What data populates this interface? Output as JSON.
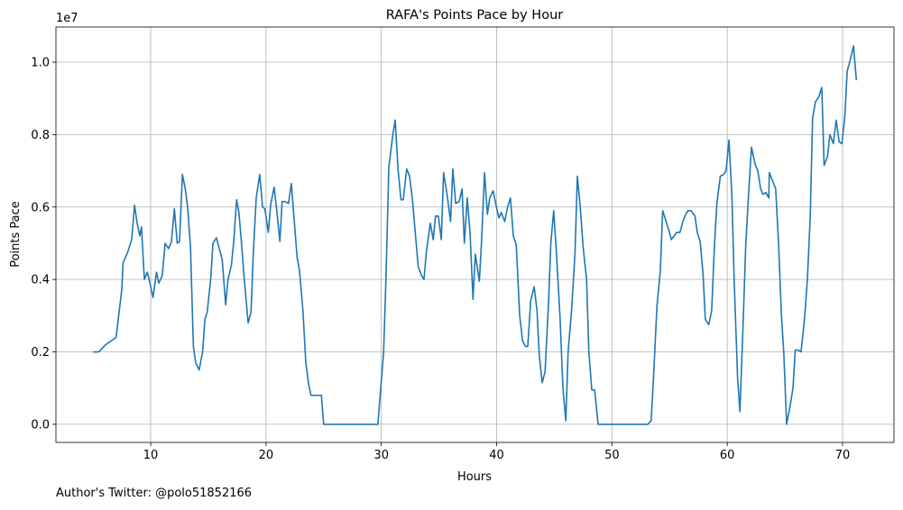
{
  "chart_data": {
    "type": "line",
    "title": "RAFA's Points Pace by Hour",
    "x_label": "Hours",
    "y_label": "Points Pace",
    "y_offset_label": "1e7",
    "footnote": "Author's Twitter: @polo51852166",
    "color": "#1f77b4",
    "grid": true,
    "xlim": [
      1.78,
      74.46
    ],
    "xticks": [
      10,
      20,
      30,
      40,
      50,
      60,
      70
    ],
    "ylim": [
      -500000,
      10970000
    ],
    "yticks": [
      {
        "value": 0,
        "label": "0.0"
      },
      {
        "value": 2000000,
        "label": "0.2"
      },
      {
        "value": 4000000,
        "label": "0.4"
      },
      {
        "value": 6000000,
        "label": "0.6"
      },
      {
        "value": 8000000,
        "label": "0.8"
      },
      {
        "value": 10000000,
        "label": "1.0"
      }
    ],
    "x": [
      5.0,
      5.5,
      6.1,
      7.0,
      7.5,
      7.6,
      8.0,
      8.35,
      8.6,
      8.8,
      9.05,
      9.2,
      9.45,
      9.7,
      9.9,
      10.2,
      10.5,
      10.7,
      11.0,
      11.25,
      11.55,
      11.8,
      12.05,
      12.3,
      12.5,
      12.75,
      13.0,
      13.2,
      13.45,
      13.7,
      13.9,
      14.2,
      14.5,
      14.7,
      14.9,
      15.2,
      15.4,
      15.7,
      15.95,
      16.2,
      16.5,
      16.7,
      17.0,
      17.2,
      17.45,
      17.65,
      17.9,
      18.1,
      18.45,
      18.7,
      18.9,
      19.15,
      19.45,
      19.7,
      19.9,
      20.2,
      20.4,
      20.7,
      20.95,
      21.2,
      21.4,
      21.65,
      21.95,
      22.2,
      22.45,
      22.7,
      22.9,
      23.2,
      23.45,
      23.7,
      23.9,
      24.3,
      24.8,
      25.0,
      29.7,
      30.0,
      30.2,
      30.4,
      30.65,
      31.0,
      31.2,
      31.45,
      31.7,
      31.9,
      32.2,
      32.45,
      32.7,
      32.9,
      33.2,
      33.5,
      33.7,
      33.9,
      34.25,
      34.5,
      34.7,
      34.95,
      35.2,
      35.4,
      35.7,
      36.0,
      36.2,
      36.45,
      36.75,
      37.0,
      37.2,
      37.45,
      37.7,
      37.95,
      38.15,
      38.5,
      38.7,
      38.95,
      39.2,
      39.4,
      39.7,
      39.95,
      40.2,
      40.4,
      40.7,
      40.95,
      41.2,
      41.45,
      41.7,
      42.0,
      42.25,
      42.5,
      42.7,
      42.95,
      43.25,
      43.5,
      43.7,
      43.95,
      44.2,
      44.5,
      44.7,
      44.95,
      45.2,
      45.5,
      45.75,
      46.0,
      46.2,
      46.5,
      46.8,
      47.0,
      47.25,
      47.5,
      47.8,
      48.0,
      48.25,
      48.5,
      48.8,
      53.1,
      53.4,
      53.6,
      53.9,
      54.2,
      54.4,
      54.65,
      54.95,
      55.15,
      55.4,
      55.6,
      55.9,
      56.15,
      56.4,
      56.6,
      56.85,
      57.2,
      57.4,
      57.65,
      57.9,
      58.1,
      58.4,
      58.65,
      58.9,
      59.1,
      59.4,
      59.7,
      59.9,
      60.15,
      60.4,
      60.6,
      60.9,
      61.1,
      61.4,
      61.6,
      61.85,
      62.1,
      62.4,
      62.65,
      62.9,
      63.1,
      63.35,
      63.6,
      63.65,
      63.9,
      64.2,
      64.45,
      64.7,
      64.9,
      65.15,
      65.45,
      65.7,
      65.9,
      66.15,
      66.4,
      66.7,
      66.95,
      67.2,
      67.4,
      67.65,
      67.95,
      68.2,
      68.4,
      68.7,
      68.9,
      69.2,
      69.45,
      69.7,
      69.95,
      70.2,
      70.4,
      70.7,
      70.95,
      71.2
    ],
    "values": [
      2000000,
      2000000,
      2200000,
      2400000,
      3750000,
      4450000,
      4750000,
      5100000,
      6050000,
      5600000,
      5200000,
      5450000,
      4000000,
      4200000,
      3950000,
      3500000,
      4200000,
      3900000,
      4100000,
      5000000,
      4850000,
      5050000,
      5950000,
      5000000,
      5050000,
      6900000,
      6500000,
      6000000,
      4900000,
      2150000,
      1700000,
      1500000,
      2000000,
      2900000,
      3100000,
      4000000,
      5000000,
      5150000,
      4850000,
      4550000,
      3300000,
      4000000,
      4400000,
      5050000,
      6200000,
      5850000,
      4900000,
      4050000,
      2800000,
      3100000,
      4750000,
      6250000,
      6900000,
      6000000,
      5950000,
      5300000,
      6050000,
      6550000,
      5850000,
      5050000,
      6150000,
      6150000,
      6100000,
      6650000,
      5600000,
      4600000,
      4250000,
      3150000,
      1700000,
      1100000,
      800000,
      800000,
      800000,
      0,
      0,
      1200000,
      2000000,
      4000000,
      7100000,
      8000000,
      8400000,
      7050000,
      6200000,
      6200000,
      7050000,
      6850000,
      6200000,
      5450000,
      4350000,
      4100000,
      4000000,
      4750000,
      5550000,
      5100000,
      5750000,
      5750000,
      5100000,
      6950000,
      6350000,
      5600000,
      7050000,
      6100000,
      6150000,
      6500000,
      5000000,
      6250000,
      5250000,
      3450000,
      4700000,
      3950000,
      5100000,
      6950000,
      5800000,
      6250000,
      6450000,
      6050000,
      5700000,
      5850000,
      5600000,
      6000000,
      6250000,
      5200000,
      4950000,
      3000000,
      2300000,
      2150000,
      2150000,
      3400000,
      3800000,
      3150000,
      1900000,
      1150000,
      1450000,
      3350000,
      5000000,
      5900000,
      4650000,
      2950000,
      1000000,
      100000,
      2000000,
      3150000,
      4750000,
      6850000,
      6000000,
      4900000,
      4000000,
      2000000,
      950000,
      950000,
      0,
      0,
      100000,
      1250000,
      3250000,
      4250000,
      5900000,
      5650000,
      5350000,
      5100000,
      5200000,
      5300000,
      5300000,
      5600000,
      5800000,
      5900000,
      5900000,
      5750000,
      5300000,
      5050000,
      4150000,
      2900000,
      2750000,
      3150000,
      5000000,
      6100000,
      6850000,
      6900000,
      7000000,
      7850000,
      6350000,
      4000000,
      1250000,
      350000,
      3000000,
      4900000,
      6350000,
      7650000,
      7200000,
      7000000,
      6500000,
      6350000,
      6400000,
      6250000,
      6950000,
      6750000,
      6500000,
      5000000,
      3000000,
      2000000,
      0,
      500000,
      1000000,
      2050000,
      2050000,
      2000000,
      2900000,
      4000000,
      5750000,
      8450000,
      8900000,
      9050000,
      9300000,
      7150000,
      7400000,
      8000000,
      7750000,
      8400000,
      7800000,
      7750000,
      8500000,
      9750000,
      10100000,
      10450000,
      9500000
    ]
  }
}
